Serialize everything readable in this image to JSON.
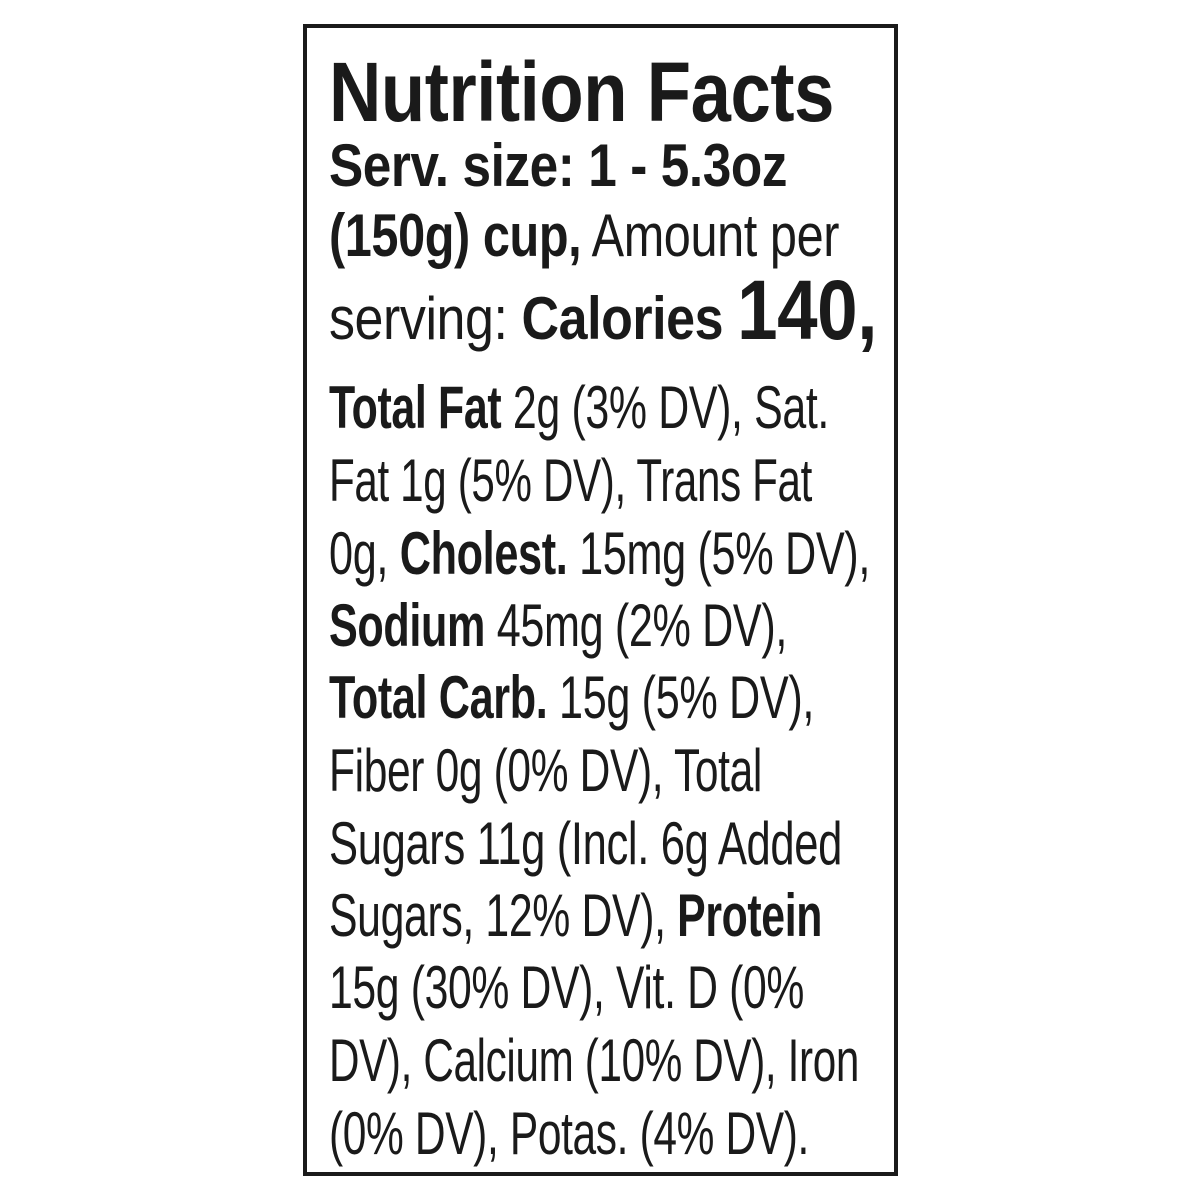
{
  "label": {
    "title": "Nutrition Facts",
    "lines": [
      [
        {
          "t": "Serv. size: 1 - 5.3oz",
          "b": true
        }
      ],
      [
        {
          "t": "(150g) cup,",
          "b": true
        },
        {
          "t": " Amount per",
          "b": false
        }
      ],
      [
        {
          "t": "serving: ",
          "b": false
        },
        {
          "t": "Calories ",
          "b": true
        },
        {
          "t": "140,",
          "b": true,
          "big": true
        }
      ],
      [
        {
          "t": "Total Fat",
          "b": true
        },
        {
          "t": " 2g (3% DV), Sat.",
          "b": false
        }
      ],
      [
        {
          "t": "Fat 1g (5% DV), Trans Fat",
          "b": false
        }
      ],
      [
        {
          "t": "0g, ",
          "b": false
        },
        {
          "t": "Cholest.",
          "b": true
        },
        {
          "t": " 15mg (5% DV),",
          "b": false
        }
      ],
      [
        {
          "t": "Sodium",
          "b": true
        },
        {
          "t": " 45mg (2% DV),",
          "b": false
        }
      ],
      [
        {
          "t": "Total Carb.",
          "b": true
        },
        {
          "t": " 15g (5% DV),",
          "b": false
        }
      ],
      [
        {
          "t": "Fiber 0g (0% DV), Total",
          "b": false
        }
      ],
      [
        {
          "t": "Sugars 11g (Incl. 6g Added",
          "b": false
        }
      ],
      [
        {
          "t": "Sugars, 12% DV), ",
          "b": false
        },
        {
          "t": "Protein",
          "b": true
        }
      ],
      [
        {
          "t": "15g (30% DV), Vit. D (0%",
          "b": false
        }
      ],
      [
        {
          "t": "DV), Calcium (10% DV), Iron",
          "b": false
        }
      ],
      [
        {
          "t": "(0% DV), Potas. (4% DV).",
          "b": false
        }
      ]
    ]
  }
}
